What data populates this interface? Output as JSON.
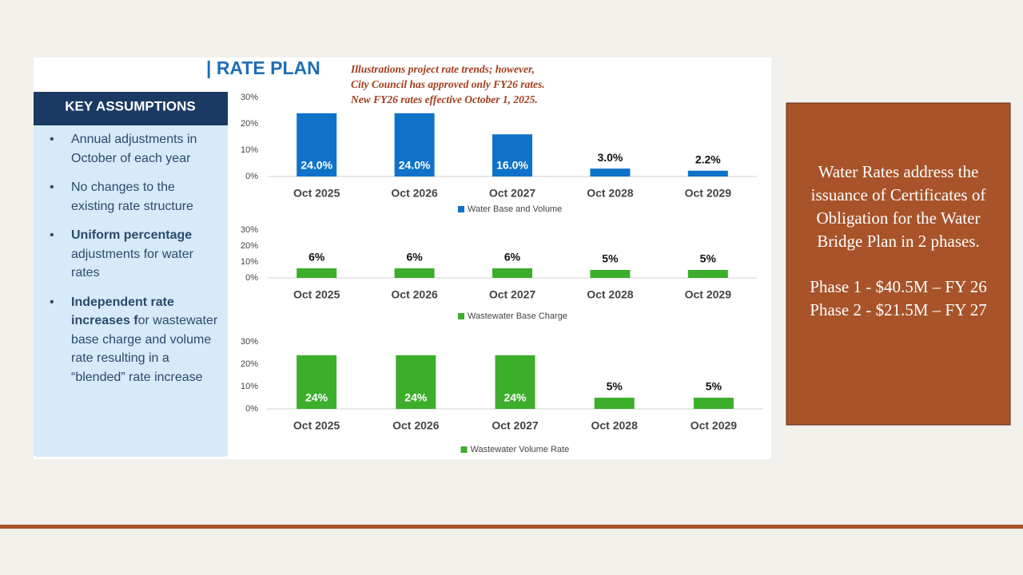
{
  "header": {
    "title": "| RATE PLAN",
    "note": [
      "Illustrations project rate trends; however,",
      "City Council has approved only FY26 rates.",
      "New FY26 rates effective October 1, 2025."
    ]
  },
  "assumptions": {
    "title": "KEY ASSUMPTIONS",
    "items": [
      [
        {
          "text": "Annual adjustments in October of each year",
          "bold": false
        }
      ],
      [
        {
          "text": "No changes to the existing rate structure",
          "bold": false
        }
      ],
      [
        {
          "text": "Uniform percentage",
          "bold": true
        },
        {
          "text": " adjustments for water rates",
          "bold": false
        }
      ],
      [
        {
          "text": "Independent rate increases f",
          "bold": true
        },
        {
          "text": "or wastewater base charge and volume rate resulting in a “blended” rate increase",
          "bold": false
        }
      ]
    ]
  },
  "sidebar": {
    "lines": [
      "Water Rates address the",
      "issuance of Certificates of",
      "Obligation for the Water",
      "Bridge Plan in 2 phases."
    ],
    "phases": [
      "Phase 1 - $40.5M – FY 26",
      "Phase 2 - $21.5M – FY 27"
    ]
  },
  "chart_data": [
    {
      "type": "bar",
      "categories": [
        "Oct 2025",
        "Oct 2026",
        "Oct 2027",
        "Oct 2028",
        "Oct 2029"
      ],
      "series": [
        {
          "name": "Water Base and Volume",
          "color": "#0f72c9",
          "values": [
            24,
            24,
            16,
            3,
            2.2
          ],
          "value_labels": [
            "24.0%",
            "24.0%",
            "16.0%",
            "3.0%",
            "2.2%"
          ]
        }
      ],
      "ylim": [
        0,
        30
      ],
      "yticks": [
        {
          "value": 0,
          "label": "0%"
        },
        {
          "value": 10,
          "label": "10%"
        },
        {
          "value": 20,
          "label": "20%"
        },
        {
          "value": 30,
          "label": "30%"
        }
      ],
      "grid": false
    },
    {
      "type": "bar",
      "categories": [
        "Oct 2025",
        "Oct 2026",
        "Oct 2027",
        "Oct 2028",
        "Oct 2029"
      ],
      "series": [
        {
          "name": "Wastewater Base Charge",
          "color": "#3cae2c",
          "values": [
            6,
            6,
            6,
            5,
            5
          ],
          "value_labels": [
            "6%",
            "6%",
            "6%",
            "5%",
            "5%"
          ]
        }
      ],
      "ylim": [
        0,
        30
      ],
      "yticks": [
        {
          "value": 0,
          "label": "0%"
        },
        {
          "value": 10,
          "label": "10%"
        },
        {
          "value": 20,
          "label": "20%"
        },
        {
          "value": 30,
          "label": "30%"
        }
      ],
      "grid": false
    },
    {
      "type": "bar",
      "categories": [
        "Oct 2025",
        "Oct 2026",
        "Oct 2027",
        "Oct 2028",
        "Oct 2029"
      ],
      "series": [
        {
          "name": "Wastewater Volume Rate",
          "color": "#3cae2c",
          "values": [
            24,
            24,
            24,
            5,
            5
          ],
          "value_labels": [
            "24%",
            "24%",
            "24%",
            "5%",
            "5%"
          ]
        }
      ],
      "ylim": [
        0,
        30
      ],
      "yticks": [
        {
          "value": 0,
          "label": "0%"
        },
        {
          "value": 10,
          "label": "10%"
        },
        {
          "value": 20,
          "label": "20%"
        },
        {
          "value": 30,
          "label": "30%"
        }
      ],
      "grid": false
    }
  ]
}
